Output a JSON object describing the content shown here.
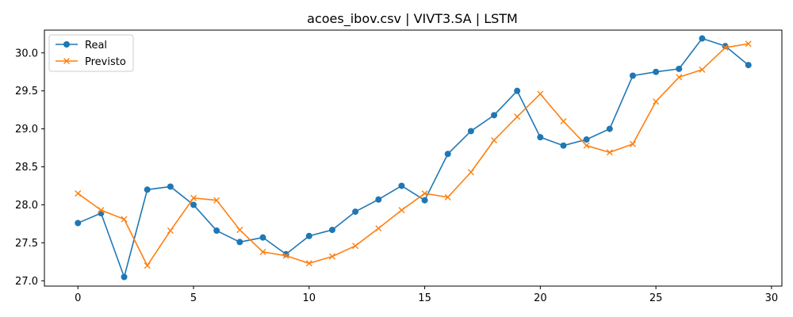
{
  "chart_data": {
    "type": "line",
    "title": "acoes_ibov.csv | VIVT3.SA | LSTM",
    "xlabel": "",
    "ylabel": "",
    "xlim": [
      -1.45,
      30.45
    ],
    "ylim": [
      26.93,
      30.3
    ],
    "xticks": [
      0,
      5,
      10,
      15,
      20,
      25,
      30
    ],
    "yticks": [
      27.0,
      27.5,
      28.0,
      28.5,
      29.0,
      29.5,
      30.0
    ],
    "xtick_labels": [
      "0",
      "5",
      "10",
      "15",
      "20",
      "25",
      "30"
    ],
    "ytick_labels": [
      "27.0",
      "27.5",
      "28.0",
      "28.5",
      "29.0",
      "29.5",
      "30.0"
    ],
    "grid": false,
    "legend_position": "top-left",
    "x": [
      0,
      1,
      2,
      3,
      4,
      5,
      6,
      7,
      8,
      9,
      10,
      11,
      12,
      13,
      14,
      15,
      16,
      17,
      18,
      19,
      20,
      21,
      22,
      23,
      24,
      25,
      26,
      27,
      28,
      29
    ],
    "series": [
      {
        "name": "Real",
        "color": "#1f77b4",
        "marker": "circle",
        "values": [
          27.76,
          27.89,
          27.05,
          28.2,
          28.24,
          28.0,
          27.66,
          27.51,
          27.57,
          27.35,
          27.59,
          27.67,
          27.91,
          28.07,
          28.25,
          28.06,
          28.67,
          28.97,
          29.18,
          29.5,
          28.89,
          28.78,
          28.86,
          29.0,
          29.7,
          29.75,
          29.79,
          30.19,
          30.09,
          29.84
        ]
      },
      {
        "name": "Previsto",
        "color": "#ff7f0e",
        "marker": "x",
        "values": [
          28.15,
          27.93,
          27.81,
          27.2,
          27.66,
          28.09,
          28.06,
          27.67,
          27.38,
          27.33,
          27.23,
          27.32,
          27.46,
          27.69,
          27.93,
          28.15,
          28.1,
          28.43,
          28.85,
          29.16,
          29.46,
          29.1,
          28.78,
          28.69,
          28.8,
          29.36,
          29.68,
          29.78,
          30.07,
          30.12
        ]
      }
    ]
  }
}
